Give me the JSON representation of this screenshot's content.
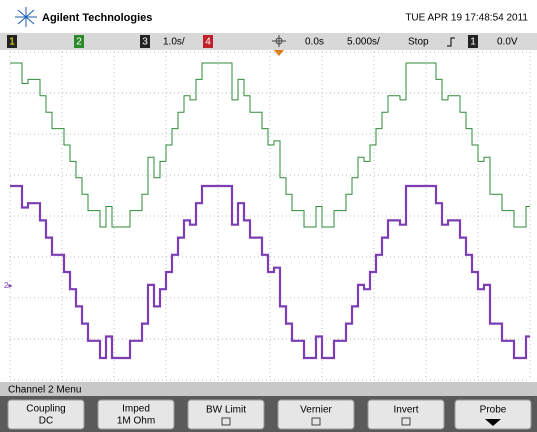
{
  "header": {
    "brand": "Agilent Technologies",
    "datetime": "TUE APR 19 17:48:54 2011"
  },
  "status_bar": {
    "ch1": "1",
    "ch2": "2",
    "ch3": "3",
    "time_div": "1.0s/",
    "ch4": "4",
    "delay": "0.0s",
    "time_scale": "5.000s/",
    "run_state": "Stop",
    "trigger_source": "1",
    "trigger_level": "0.0V"
  },
  "menu": {
    "title": "Channel 2 Menu",
    "buttons": [
      {
        "label": "Coupling",
        "value": "DC"
      },
      {
        "label": "Imped",
        "value": "1M Ohm"
      },
      {
        "label": "BW Limit"
      },
      {
        "label": "Vernier"
      },
      {
        "label": "Invert"
      },
      {
        "label": "Probe"
      }
    ]
  }
}
